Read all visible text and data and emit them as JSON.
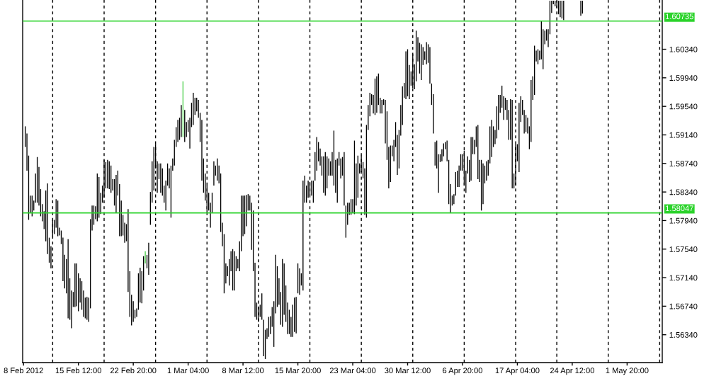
{
  "chart_data": {
    "type": "bar",
    "categories": [
      "8 Feb 2012",
      null,
      null,
      null,
      null,
      null,
      null,
      null,
      null,
      null,
      null,
      null,
      null,
      null,
      null,
      null,
      null,
      null,
      null,
      null,
      null,
      null,
      null,
      null,
      null,
      null,
      null,
      null,
      null,
      null,
      null,
      null,
      "15 Feb 12:00",
      null,
      null,
      null,
      null,
      null,
      null,
      null,
      null,
      null,
      null,
      null,
      null,
      null,
      null,
      null,
      null,
      null,
      null,
      null,
      null,
      null,
      null,
      null,
      null,
      null,
      null,
      null,
      null,
      null,
      null,
      null,
      "22 Feb 20:00",
      null,
      null,
      null,
      null,
      null,
      null,
      null,
      null,
      null,
      null,
      null,
      null,
      null,
      null,
      null,
      null,
      null,
      null,
      null,
      null,
      null,
      null,
      null,
      null,
      null,
      null,
      null,
      null,
      null,
      null,
      null,
      "1 Mar 04:00",
      null,
      null,
      null,
      null,
      null,
      null,
      null,
      null,
      null,
      null,
      null,
      null,
      null,
      null,
      null,
      null,
      null,
      null,
      null,
      null,
      null,
      null,
      null,
      null,
      null,
      null,
      null,
      null,
      null,
      null,
      null,
      "8 Mar 12:00",
      null,
      null,
      null,
      null,
      null,
      null,
      null,
      null,
      null,
      null,
      null,
      null,
      null,
      null,
      null,
      null,
      null,
      null,
      null,
      null,
      null,
      null,
      null,
      null,
      null,
      null,
      null,
      null,
      null,
      null,
      null,
      "15 Mar 20:00",
      null,
      null,
      null,
      null,
      null,
      null,
      null,
      null,
      null,
      null,
      null,
      null,
      null,
      null,
      null,
      null,
      null,
      null,
      null,
      null,
      null,
      null,
      null,
      null,
      null,
      null,
      null,
      null,
      null,
      null,
      null,
      "23 Mar 04:00",
      null,
      null,
      null,
      null,
      null,
      null,
      null,
      null,
      null,
      null,
      null,
      null,
      null,
      null,
      null,
      null,
      null,
      null,
      null,
      null,
      null,
      null,
      null,
      null,
      null,
      null,
      null,
      null,
      null,
      null,
      null,
      "30 Mar 12:00",
      null,
      null,
      null,
      null,
      null,
      null,
      null,
      null,
      null,
      null,
      null,
      null,
      null,
      null,
      null,
      null,
      null,
      null,
      null,
      null,
      null,
      null,
      null,
      null,
      null,
      null,
      null,
      null,
      null,
      null,
      null,
      "6 Apr 20:00",
      null,
      null,
      null,
      null,
      null,
      null,
      null,
      null,
      null,
      null,
      null,
      null,
      null,
      null,
      null,
      null,
      null,
      null,
      null,
      null,
      null,
      null,
      null,
      null,
      null,
      null,
      null,
      null,
      null,
      null,
      null,
      "17 Apr 04:00",
      null,
      null,
      null,
      null,
      null,
      null,
      null,
      null,
      null,
      null,
      null,
      null,
      null,
      null,
      null,
      null,
      null,
      null,
      null,
      null,
      null,
      null,
      null,
      null,
      null,
      null,
      null,
      null,
      null,
      null,
      null,
      "24 Apr 12:00",
      null,
      null,
      null,
      null,
      null,
      null,
      null,
      null,
      null,
      null,
      null,
      null,
      null,
      null,
      null,
      null,
      null,
      null,
      null,
      null,
      null,
      null,
      null,
      null,
      null,
      null,
      null,
      null,
      null,
      null,
      null,
      "1 May 20:00",
      null,
      null,
      null,
      null,
      null,
      null,
      null,
      null,
      null,
      null,
      null,
      null,
      null,
      null,
      null,
      null,
      null,
      null,
      null,
      null
    ],
    "base": [
      null,
      1.5897,
      1.5864,
      1.5795,
      1.5805,
      1.58,
      1.5808,
      1.5819,
      1.5819,
      1.5815,
      1.58,
      1.5793,
      1.5782,
      1.5765,
      1.5747,
      1.5735,
      1.5727,
      1.5772,
      1.5775,
      1.5784,
      1.5772,
      1.5773,
      1.5761,
      1.5709,
      1.5699,
      1.5692,
      1.5657,
      1.5655,
      1.5643,
      1.5673,
      1.5673,
      1.5674,
      1.5667,
      1.5679,
      1.5669,
      1.5659,
      1.5657,
      1.5655,
      1.5652,
      1.5671,
      1.578,
      1.5788,
      1.5796,
      1.5793,
      1.5798,
      1.5803,
      1.5819,
      1.5826,
      1.5839,
      1.5839,
      1.5838,
      1.5833,
      1.5836,
      1.5815,
      1.5805,
      1.5829,
      1.5772,
      1.5772,
      1.5773,
      1.5763,
      1.5765,
      1.5694,
      1.5659,
      1.5647,
      1.5652,
      1.5657,
      1.5659,
      1.5669,
      1.5679,
      1.5678,
      1.5696,
      1.5734,
      1.5727,
      1.5718,
      1.5788,
      1.5819,
      1.5836,
      1.5867,
      1.5833,
      1.5852,
      1.5833,
      1.5829,
      1.5819,
      1.5808,
      1.5843,
      1.5839,
      1.5798,
      1.5864,
      1.5871,
      1.5897,
      1.5904,
      1.5907,
      1.5911,
      1.5911,
      1.5904,
      1.5911,
      1.5918,
      1.5895,
      1.5925,
      1.5928,
      1.5942,
      1.5947,
      1.5938,
      1.5904,
      1.585,
      1.5833,
      1.5822,
      1.5805,
      1.5808,
      1.5784,
      1.5805,
      1.5843,
      1.5857,
      1.585,
      1.5846,
      1.5778,
      1.5758,
      1.5692,
      1.5706,
      1.5716,
      1.5703,
      1.5723,
      1.5696,
      1.5696,
      1.5723,
      1.5727,
      1.5723,
      1.5751,
      1.5772,
      1.5775,
      1.5786,
      1.5808,
      1.5808,
      1.5753,
      1.5723,
      1.5659,
      1.5655,
      1.5652,
      1.5659,
      1.5655,
      1.5604,
      1.56,
      1.5628,
      1.5631,
      1.5635,
      1.5645,
      1.5617,
      1.5664,
      1.5673,
      1.5676,
      1.5648,
      1.5645,
      1.5662,
      1.5652,
      1.5635,
      1.5635,
      1.5631,
      1.5631,
      1.5638,
      1.5636,
      1.5692,
      1.569,
      1.5703,
      1.5696,
      1.5819,
      1.5819,
      1.5826,
      1.5829,
      1.5829,
      1.5819,
      1.585,
      1.5864,
      1.5877,
      1.5871,
      1.5857,
      1.5833,
      1.5829,
      1.5839,
      1.5857,
      1.5857,
      1.5857,
      1.5843,
      1.5833,
      1.5819,
      1.5871,
      1.5853,
      1.5857,
      1.5815,
      1.577,
      1.5788,
      1.5802,
      1.5802,
      1.5805,
      1.5803,
      1.5815,
      1.5826,
      1.586,
      1.5862,
      1.5853,
      1.5802,
      1.5798,
      1.5921,
      1.594,
      1.5956,
      1.5944,
      1.5942,
      1.5945,
      1.5956,
      1.5944,
      1.5944,
      1.5956,
      1.5902,
      1.5879,
      1.5839,
      1.5848,
      1.5884,
      1.5877,
      1.5897,
      1.5858,
      1.5867,
      1.5913,
      1.5928,
      1.5966,
      1.5964,
      1.5968,
      1.5964,
      1.5983,
      1.598,
      1.5978,
      1.5989,
      1.6017,
      1.6,
      1.5991,
      1.6012,
      1.6019,
      1.6013,
      1.6015,
      1.5986,
      1.5956,
      1.5916,
      1.5871,
      1.5867,
      1.5833,
      1.5876,
      1.5877,
      1.5884,
      1.5894,
      1.5877,
      1.5817,
      1.5805,
      1.5815,
      1.5817,
      1.5829,
      1.5841,
      1.5841,
      1.5864,
      1.5864,
      1.5843,
      1.5833,
      1.586,
      1.5848,
      1.585,
      1.5887,
      1.5887,
      1.5897,
      1.5852,
      1.5848,
      1.5808,
      1.5817,
      1.5846,
      1.585,
      1.5857,
      1.5874,
      1.5883,
      1.5897,
      1.5901,
      1.5909,
      1.5921,
      1.5945,
      1.5952,
      1.5935,
      1.5949,
      1.5935,
      1.5907,
      1.5907,
      1.5839,
      1.5839,
      1.5843,
      1.5877,
      1.5862,
      1.5932,
      1.5942,
      1.5916,
      1.5918,
      1.5916,
      1.5894,
      1.5904,
      1.5963,
      1.597,
      1.6017,
      1.6013,
      1.6019,
      1.602,
      1.6006,
      1.6041,
      1.6046,
      1.6037,
      1.6055,
      1.6085,
      1.6097,
      1.6094,
      1.6092,
      1.6083,
      1.6079,
      1.6077,
      1.6075,
      null,
      null,
      null,
      null,
      null,
      null,
      null,
      null,
      null,
      1.6081,
      1.6084,
      null,
      null,
      null,
      null,
      null,
      null,
      null,
      null,
      null,
      null,
      null,
      null,
      null,
      null,
      null,
      null,
      null,
      null,
      null,
      null,
      null,
      null,
      null,
      null,
      null,
      null,
      null,
      null,
      null,
      null,
      null,
      null,
      null,
      null,
      null,
      null,
      null,
      null,
      null,
      null,
      null,
      null,
      null,
      null,
      null,
      null
    ],
    "values": [
      null,
      0.0029,
      0.0052,
      0.009,
      0.0024,
      0.0029,
      0.0014,
      0.0041,
      0.0064,
      0.0054,
      0.0038,
      0.0024,
      0.0025,
      0.0071,
      0.0099,
      0.0035,
      0.0031,
      0.0023,
      0.002,
      0.004,
      0.005,
      0.0011,
      0.0019,
      0.0061,
      0.0047,
      0.0048,
      0.0111,
      0.0058,
      0.0053,
      0.0021,
      0.0061,
      0.006,
      0.0053,
      0.0034,
      0.004,
      0.0037,
      0.0029,
      0.0032,
      0.0034,
      0.0125,
      0.0035,
      0.0027,
      0.0018,
      0.0067,
      0.0057,
      0.003,
      0.0024,
      0.0053,
      0.0037,
      0.004,
      0.0039,
      0.0038,
      0.0016,
      0.0037,
      0.0053,
      0.0035,
      0.0073,
      0.005,
      0.0029,
      0.0028,
      0.0024,
      0.0116,
      0.0064,
      0.0043,
      0.0029,
      0.0012,
      0.0012,
      0.0051,
      0.0049,
      0.0045,
      0.0048,
      0.0017,
      0.0019,
      0.0045,
      0.0046,
      0.0058,
      0.0061,
      0.0034,
      0.0044,
      0.0022,
      0.0041,
      0.0038,
      0.0024,
      0.0042,
      0.0031,
      0.0028,
      0.0073,
      0.0017,
      0.0036,
      0.0028,
      0.0031,
      0.0031,
      0.0045,
      0.0078,
      0.0045,
      0.0021,
      0.0017,
      0.0043,
      0.0034,
      0.0045,
      0.0024,
      0.0019,
      0.0025,
      0.0041,
      0.0085,
      0.0048,
      0.0038,
      0.0038,
      0.0025,
      0.0035,
      0.0028,
      0.0034,
      0.0014,
      0.0031,
      0.0025,
      0.0082,
      0.0033,
      0.0083,
      0.0028,
      0.0014,
      0.0037,
      0.0028,
      0.0058,
      0.0055,
      0.0021,
      0.0013,
      0.0042,
      0.0078,
      0.0057,
      0.0054,
      0.0044,
      0.0023,
      0.0021,
      0.0066,
      0.0085,
      0.0076,
      0.0024,
      0.0021,
      0.0017,
      0.0037,
      0.0051,
      0.0041,
      0.0015,
      0.0028,
      0.0025,
      0.0028,
      0.0064,
      0.0082,
      0.0057,
      0.0037,
      0.0046,
      0.0095,
      0.0072,
      0.0051,
      0.0044,
      0.0034,
      0.0028,
      0.0045,
      0.0048,
      0.0051,
      0.0042,
      0.0037,
      0.0017,
      0.0154,
      0.0038,
      0.0024,
      0.0024,
      0.0019,
      0.0021,
      0.0031,
      0.004,
      0.0047,
      0.0027,
      0.0024,
      0.0027,
      0.0051,
      0.0061,
      0.0045,
      0.0024,
      0.002,
      0.0033,
      0.0077,
      0.0046,
      0.0062,
      0.0019,
      0.0028,
      0.0026,
      0.0075,
      0.0045,
      0.0031,
      0.0017,
      0.0022,
      0.0019,
      0.0103,
      0.0059,
      0.0059,
      0.0014,
      0.0023,
      0.0023,
      0.0065,
      0.013,
      0.0035,
      0.0033,
      0.0015,
      0.0026,
      0.0051,
      0.0051,
      0.0044,
      0.0022,
      0.0019,
      0.0008,
      0.0061,
      0.0068,
      0.0058,
      0.0051,
      0.0015,
      0.003,
      0.0035,
      0.0056,
      0.0054,
      0.0043,
      0.0054,
      0.0021,
      0.0067,
      0.0066,
      0.0048,
      0.002,
      0.0047,
      0.0035,
      0.0071,
      0.0034,
      0.0043,
      0.005,
      0.0025,
      0.0012,
      0.0031,
      0.0026,
      0.0051,
      0.003,
      0.0055,
      0.0033,
      0.0039,
      0.0054,
      0.0011,
      0.0017,
      0.0018,
      0.001,
      0.0029,
      0.0062,
      0.004,
      0.0014,
      0.0014,
      0.0033,
      0.0023,
      0.003,
      0.0023,
      0.0023,
      0.0049,
      0.0031,
      0.0024,
      0.0031,
      0.0061,
      0.0024,
      0.002,
      0.0029,
      0.0076,
      0.0031,
      0.0071,
      0.0057,
      0.0025,
      0.0027,
      0.0022,
      0.0052,
      0.0052,
      0.0029,
      0.002,
      0.0045,
      0.0049,
      0.0025,
      0.0031,
      0.0033,
      0.0017,
      0.0028,
      0.0042,
      0.0057,
      0.0124,
      0.0021,
      0.0058,
      0.0024,
      0.0097,
      0.0036,
      0.0021,
      0.0033,
      0.0024,
      0.0022,
      0.0032,
      0.0087,
      0.0033,
      0.0069,
      0.0015,
      0.0021,
      0.0013,
      0.0054,
      0.0056,
      0.0019,
      0.0016,
      0.0025,
      0.0047,
      0.0017,
      0.0005,
      0.0008,
      0.001,
      0.0019,
      0.0023,
      0.0025,
      0.0027,
      null,
      null,
      null,
      null,
      null,
      null,
      null,
      null,
      null,
      0.0021,
      0.0018,
      null,
      null,
      null,
      null,
      null,
      null,
      null,
      null,
      null,
      null,
      null,
      null,
      null,
      null,
      null,
      null,
      null,
      null,
      null,
      null,
      null,
      null,
      null,
      null,
      null,
      null,
      null,
      null,
      null,
      null,
      null,
      null,
      null,
      null,
      null,
      null,
      null,
      null,
      null,
      null,
      null,
      null,
      null,
      null,
      null,
      null
    ],
    "colors": [
      "#000000",
      "#000000",
      "#000000",
      "#000000",
      "#000000",
      "#000000",
      "#000000",
      "#000000",
      "#000000",
      "#000000",
      "#000000",
      "#000000",
      "#000000",
      "#000000",
      "#000000",
      "#000000",
      "#000000",
      "#000000",
      "#000000",
      "#000000",
      "#000000",
      "#000000",
      "#000000",
      "#000000",
      "#000000",
      "#000000",
      "#000000",
      "#000000",
      "#000000",
      "#000000",
      "#000000",
      "#000000",
      "#000000",
      "#000000",
      "#000000",
      "#000000",
      "#000000",
      "#000000",
      "#000000",
      "#000000",
      "#000000",
      "#000000",
      "#000000",
      "#000000",
      "#000000",
      "#000000",
      "#000000",
      "#000000",
      "#000000",
      "#000000",
      "#000000",
      "#000000",
      "#000000",
      "#000000",
      "#000000",
      "#000000",
      "#000000",
      "#000000",
      "#000000",
      "#000000",
      "#000000",
      "#000000",
      "#000000",
      "#000000",
      "#000000",
      "#000000",
      "#000000",
      "#000000",
      "#000000",
      "#000000",
      "#000000",
      "#4ccf4c",
      "#000000",
      "#000000",
      "#000000",
      "#000000",
      "#000000",
      "#000000",
      "#000000",
      "#000000",
      "#000000",
      "#000000",
      "#000000",
      "#000000",
      "#000000",
      "#000000",
      "#000000",
      "#000000",
      "#000000",
      "#000000",
      "#000000",
      "#000000",
      "#000000",
      "#4ccf4c",
      "#000000",
      "#000000",
      "#000000",
      "#000000",
      "#000000",
      "#000000",
      "#000000",
      "#000000",
      "#000000",
      "#000000",
      "#000000",
      "#000000",
      "#000000",
      "#000000",
      "#000000",
      "#000000",
      "#000000",
      "#000000",
      "#000000",
      "#000000",
      "#000000",
      "#000000",
      "#000000",
      "#000000",
      "#000000",
      "#000000",
      "#000000",
      "#000000",
      "#000000",
      "#000000",
      "#000000",
      "#000000",
      "#000000",
      "#000000",
      "#000000",
      "#000000",
      "#000000",
      "#000000",
      "#000000",
      "#000000",
      "#000000",
      "#000000",
      "#000000",
      "#000000",
      "#000000",
      "#000000",
      "#000000",
      "#000000",
      "#000000",
      "#000000",
      "#000000",
      "#000000",
      "#000000",
      "#000000",
      "#000000",
      "#000000",
      "#000000",
      "#000000",
      "#000000",
      "#000000",
      "#000000",
      "#000000",
      "#000000",
      "#000000",
      "#000000",
      "#000000",
      "#000000",
      "#000000",
      "#000000",
      "#000000",
      "#000000",
      "#000000",
      "#000000",
      "#000000",
      "#000000",
      "#000000",
      "#000000",
      "#000000",
      "#000000",
      "#000000",
      "#000000",
      "#000000",
      "#000000",
      "#000000",
      "#000000",
      "#000000",
      "#000000",
      "#000000",
      "#000000",
      "#000000",
      "#000000",
      "#000000",
      "#000000",
      "#000000",
      "#000000",
      "#000000",
      "#000000",
      "#000000",
      "#000000",
      "#000000",
      "#000000",
      "#000000",
      "#000000",
      "#000000",
      "#000000",
      "#000000",
      "#000000",
      "#000000",
      "#000000",
      "#000000",
      "#000000",
      "#000000",
      "#000000",
      "#000000",
      "#000000",
      "#000000",
      "#000000",
      "#000000",
      "#000000",
      "#000000",
      "#000000",
      "#000000",
      "#000000",
      "#000000",
      "#000000",
      "#000000",
      "#000000",
      "#000000",
      "#000000",
      "#000000",
      "#000000",
      "#000000",
      "#000000",
      "#000000",
      "#000000",
      "#000000",
      "#000000",
      "#000000",
      "#000000",
      "#000000",
      "#000000",
      "#000000",
      "#000000",
      "#000000",
      "#000000",
      "#000000",
      "#000000",
      "#000000",
      "#000000",
      "#000000",
      "#000000",
      "#000000",
      "#000000",
      "#000000",
      "#000000",
      "#000000",
      "#000000",
      "#000000",
      "#000000",
      "#000000",
      "#000000",
      "#000000",
      "#000000",
      "#000000",
      "#000000",
      "#000000",
      "#000000",
      "#000000",
      "#000000",
      "#000000",
      "#000000",
      "#000000",
      "#000000",
      "#000000",
      "#000000",
      "#000000",
      "#000000",
      "#000000",
      "#000000",
      "#000000",
      "#000000",
      "#000000",
      "#000000",
      "#000000",
      "#000000",
      "#000000",
      "#000000",
      "#000000",
      "#000000",
      "#000000",
      "#000000",
      "#000000",
      "#000000",
      "#000000",
      "#000000",
      "#000000",
      "#000000",
      "#000000",
      "#000000",
      "#000000",
      "#000000",
      "#000000",
      "#000000",
      "#000000",
      "#000000",
      "#000000",
      "#000000",
      "#000000",
      "#000000",
      "#000000",
      "#000000",
      "#000000",
      "#000000",
      "#000000",
      "#000000",
      "#000000",
      "#000000",
      "#000000",
      "#000000",
      "#000000",
      "#000000",
      "#000000",
      "#000000",
      "#000000",
      "#000000",
      "#000000",
      "#000000",
      "#000000",
      "#000000",
      "#000000",
      "#000000",
      "#000000",
      "#000000",
      "#000000",
      "#000000",
      "#000000",
      "#000000",
      "#000000",
      "#000000",
      "#000000",
      "#000000",
      "#000000",
      "#000000",
      "#000000",
      "#000000",
      "#000000",
      "#000000",
      "#000000",
      "#000000",
      "#000000",
      "#000000",
      "#000000",
      "#000000",
      "#000000",
      "#000000",
      "#000000",
      "#000000",
      "#000000",
      "#000000",
      "#000000",
      "#000000",
      "#000000",
      "#000000",
      "#000000",
      "#000000",
      "#000000",
      "#000000",
      "#000000",
      "#000000",
      "#000000",
      "#000000",
      "#000000",
      "#000000",
      "#000000",
      "#000000",
      "#000000",
      "#000000",
      "#000000",
      "#000000"
    ],
    "ylim": [
      1.5595,
      1.6103
    ],
    "yticks": [
      {
        "value": 1.5634,
        "label": "1.56340"
      },
      {
        "value": 1.5674,
        "label": "1.56740"
      },
      {
        "value": 1.5714,
        "label": "1.57140"
      },
      {
        "value": 1.5754,
        "label": "1.57540"
      },
      {
        "value": 1.5794,
        "label": "1.57940"
      },
      {
        "value": 1.5834,
        "label": "1.58340"
      },
      {
        "value": 1.5874,
        "label": "1.58740"
      },
      {
        "value": 1.5914,
        "label": "1.59140"
      },
      {
        "value": 1.5954,
        "label": "1.59540"
      },
      {
        "value": 1.5994,
        "label": "1.59940"
      },
      {
        "value": 1.6034,
        "label": "1.60340"
      }
    ],
    "ref_lines": [
      {
        "axis": "y",
        "value": 1.60735,
        "label": "1.60735",
        "color": "#2bd32b"
      },
      {
        "axis": "y",
        "value": 1.58047,
        "label": "1.58047",
        "color": "#2bd32b"
      }
    ]
  }
}
